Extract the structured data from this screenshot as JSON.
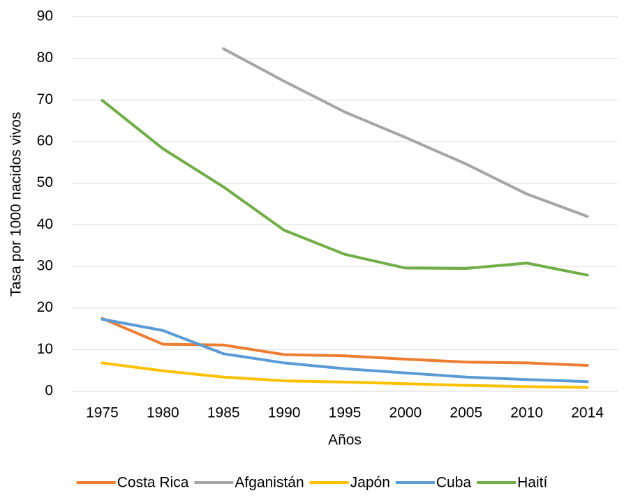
{
  "chart_data": {
    "type": "line",
    "x_label": "Años",
    "y_label": "Tasa por 1000 nacidos vivos",
    "categories": [
      "1975",
      "1980",
      "1985",
      "1990",
      "1995",
      "2000",
      "2005",
      "2010",
      "2014"
    ],
    "series": [
      {
        "name": "Costa Rica",
        "color": "#ed7d31",
        "values": [
          17.5,
          11.3,
          11.1,
          8.8,
          8.5,
          7.7,
          7.0,
          6.8,
          6.2
        ]
      },
      {
        "name": "Afganistán",
        "color": "#a5a5a5",
        "values": [
          null,
          null,
          82.3,
          74.5,
          67.1,
          61.0,
          54.6,
          47.4,
          42.0
        ]
      },
      {
        "name": "Japón",
        "color": "#ffc000",
        "values": [
          6.8,
          4.9,
          3.4,
          2.5,
          2.2,
          1.8,
          1.4,
          1.1,
          0.9
        ]
      },
      {
        "name": "Cuba",
        "color": "#5b9bd5",
        "values": [
          17.3,
          14.6,
          9.0,
          6.8,
          5.4,
          4.4,
          3.4,
          2.8,
          2.3
        ]
      },
      {
        "name": "Haití",
        "color": "#70ad47",
        "values": [
          69.9,
          58.3,
          49.1,
          38.7,
          32.9,
          29.6,
          29.5,
          30.8,
          27.9
        ]
      }
    ],
    "ylim": [
      0,
      90
    ],
    "yticks": [
      0,
      10,
      20,
      30,
      40,
      50,
      60,
      70,
      80,
      90
    ],
    "grid": true,
    "legend": "bottom"
  }
}
